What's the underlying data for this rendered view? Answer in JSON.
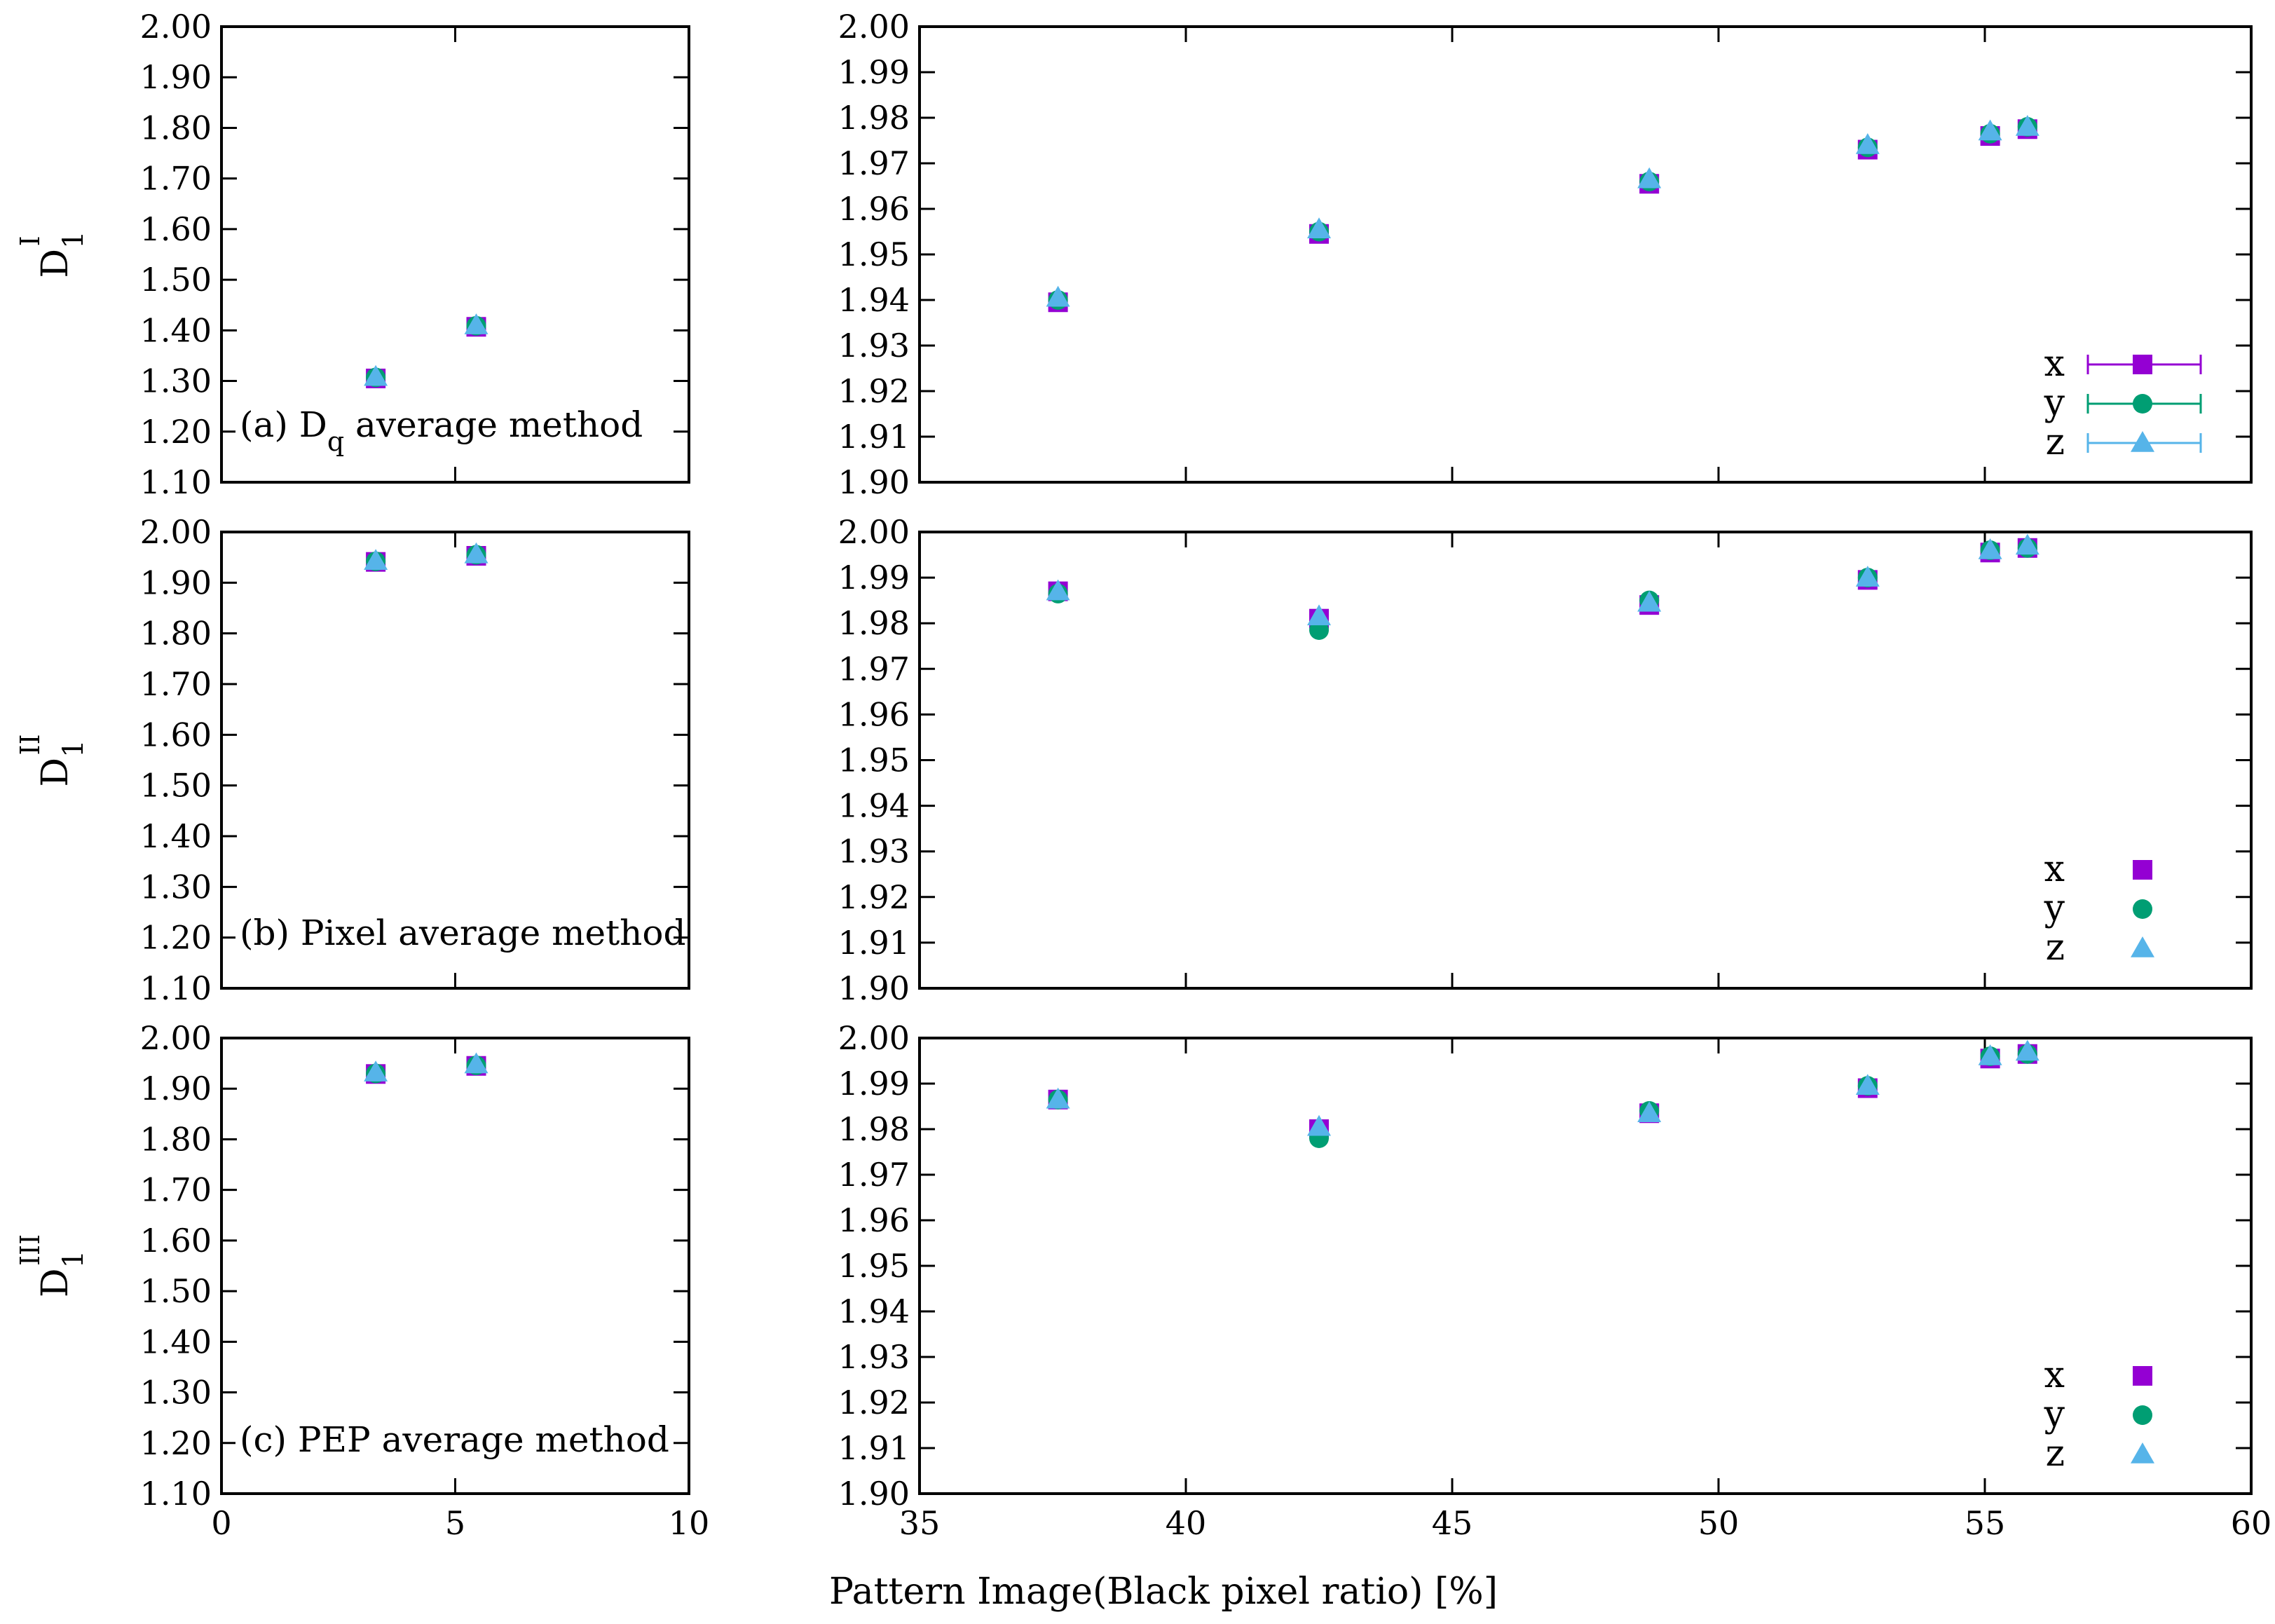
{
  "xlabel": "Pattern Image(Black pixel ratio) [%]",
  "colors": {
    "x": "#9400d3",
    "y": "#009e73",
    "z": "#56b4e9"
  },
  "row_labels": [
    {
      "base": "D",
      "sub": "1",
      "sup": "I"
    },
    {
      "base": "D",
      "sub": "1",
      "sup": "II"
    },
    {
      "base": "D",
      "sub": "1",
      "sup": "III"
    }
  ],
  "chart_data": [
    {
      "type": "scatter",
      "row": 0,
      "col": "left",
      "annotation": {
        "prefix": "(a) D",
        "sub": "q",
        "suffix": " average method"
      },
      "xlim": [
        0,
        10
      ],
      "ylim": [
        1.1,
        2.0
      ],
      "xticks": [],
      "xtick_labels": [],
      "yticks": [
        1.1,
        1.2,
        1.3,
        1.4,
        1.5,
        1.6,
        1.7,
        1.8,
        1.9,
        2.0
      ],
      "ytick_labels": [
        "1.10",
        "1.20",
        "1.30",
        "1.40",
        "1.50",
        "1.60",
        "1.70",
        "1.80",
        "1.90",
        "2.00"
      ],
      "series": [
        {
          "name": "x",
          "x": [
            3.3,
            5.45
          ],
          "y": [
            1.305,
            1.407
          ]
        },
        {
          "name": "y",
          "x": [
            3.3,
            5.45
          ],
          "y": [
            1.307,
            1.409
          ]
        },
        {
          "name": "z",
          "x": [
            3.3,
            5.45
          ],
          "y": [
            1.308,
            1.41
          ]
        }
      ]
    },
    {
      "type": "scatter",
      "row": 0,
      "col": "right",
      "xlim": [
        35,
        60
      ],
      "ylim": [
        1.9,
        2.0
      ],
      "xticks": [],
      "xtick_labels": [],
      "yticks": [
        1.9,
        1.91,
        1.92,
        1.93,
        1.94,
        1.95,
        1.96,
        1.97,
        1.98,
        1.99,
        2.0
      ],
      "ytick_labels": [
        "1.90",
        "1.91",
        "1.92",
        "1.93",
        "1.94",
        "1.95",
        "1.96",
        "1.97",
        "1.98",
        "1.99",
        "2.00"
      ],
      "legend": {
        "labels": [
          "x",
          "y",
          "z"
        ],
        "errorbars": true,
        "position": "bottom-right"
      },
      "series": [
        {
          "name": "x",
          "x": [
            37.6,
            42.5,
            48.7,
            52.8,
            55.1,
            55.8
          ],
          "y": [
            1.9395,
            1.9545,
            1.9655,
            1.973,
            1.976,
            1.9775
          ]
        },
        {
          "name": "y",
          "x": [
            37.6,
            42.5,
            48.7,
            52.8,
            55.1,
            55.8
          ],
          "y": [
            1.94,
            1.955,
            1.966,
            1.9735,
            1.9765,
            1.978
          ]
        },
        {
          "name": "z",
          "x": [
            37.6,
            42.5,
            48.7,
            52.8,
            55.1,
            55.8
          ],
          "y": [
            1.9405,
            1.9555,
            1.9665,
            1.974,
            1.977,
            1.978
          ]
        }
      ]
    },
    {
      "type": "scatter",
      "row": 1,
      "col": "left",
      "annotation": {
        "prefix": "(b) Pixel average method",
        "sub": "",
        "suffix": ""
      },
      "xlim": [
        0,
        10
      ],
      "ylim": [
        1.1,
        2.0
      ],
      "xticks": [],
      "xtick_labels": [],
      "yticks": [
        1.1,
        1.2,
        1.3,
        1.4,
        1.5,
        1.6,
        1.7,
        1.8,
        1.9,
        2.0
      ],
      "ytick_labels": [
        "1.10",
        "1.20",
        "1.30",
        "1.40",
        "1.50",
        "1.60",
        "1.70",
        "1.80",
        "1.90",
        "2.00"
      ],
      "series": [
        {
          "name": "x",
          "x": [
            3.3,
            5.45
          ],
          "y": [
            1.941,
            1.953
          ]
        },
        {
          "name": "y",
          "x": [
            3.3,
            5.45
          ],
          "y": [
            1.942,
            1.955
          ]
        },
        {
          "name": "z",
          "x": [
            3.3,
            5.45
          ],
          "y": [
            1.943,
            1.956
          ]
        }
      ]
    },
    {
      "type": "scatter",
      "row": 1,
      "col": "right",
      "xlim": [
        35,
        60
      ],
      "ylim": [
        1.9,
        2.0
      ],
      "xticks": [],
      "xtick_labels": [],
      "yticks": [
        1.9,
        1.91,
        1.92,
        1.93,
        1.94,
        1.95,
        1.96,
        1.97,
        1.98,
        1.99,
        2.0
      ],
      "ytick_labels": [
        "1.90",
        "1.91",
        "1.92",
        "1.93",
        "1.94",
        "1.95",
        "1.96",
        "1.97",
        "1.98",
        "1.99",
        "2.00"
      ],
      "legend": {
        "labels": [
          "x",
          "y",
          "z"
        ],
        "errorbars": false,
        "position": "bottom-right"
      },
      "series": [
        {
          "name": "x",
          "x": [
            37.6,
            42.5,
            48.7,
            52.8,
            55.1,
            55.8
          ],
          "y": [
            1.987,
            1.981,
            1.984,
            1.9895,
            1.9955,
            1.9965
          ]
        },
        {
          "name": "y",
          "x": [
            37.6,
            42.5,
            48.7,
            52.8,
            55.1,
            55.8
          ],
          "y": [
            1.9865,
            1.9785,
            1.985,
            1.99,
            1.996,
            1.9965
          ]
        },
        {
          "name": "z",
          "x": [
            37.6,
            42.5,
            48.7,
            52.8,
            55.1,
            55.8
          ],
          "y": [
            1.987,
            1.9815,
            1.9845,
            1.99,
            1.996,
            1.997
          ]
        }
      ]
    },
    {
      "type": "scatter",
      "row": 2,
      "col": "left",
      "annotation": {
        "prefix": "(c) PEP average method",
        "sub": "",
        "suffix": ""
      },
      "xlim": [
        0,
        10
      ],
      "ylim": [
        1.1,
        2.0
      ],
      "xticks": [
        0,
        5,
        10
      ],
      "xtick_labels": [
        "0",
        "5",
        "10"
      ],
      "yticks": [
        1.1,
        1.2,
        1.3,
        1.4,
        1.5,
        1.6,
        1.7,
        1.8,
        1.9,
        2.0
      ],
      "ytick_labels": [
        "1.10",
        "1.20",
        "1.30",
        "1.40",
        "1.50",
        "1.60",
        "1.70",
        "1.80",
        "1.90",
        "2.00"
      ],
      "series": [
        {
          "name": "x",
          "x": [
            3.3,
            5.45
          ],
          "y": [
            1.929,
            1.945
          ]
        },
        {
          "name": "y",
          "x": [
            3.3,
            5.45
          ],
          "y": [
            1.93,
            1.946
          ]
        },
        {
          "name": "z",
          "x": [
            3.3,
            5.45
          ],
          "y": [
            1.932,
            1.948
          ]
        }
      ]
    },
    {
      "type": "scatter",
      "row": 2,
      "col": "right",
      "xlim": [
        35,
        60
      ],
      "ylim": [
        1.9,
        2.0
      ],
      "xticks": [
        35,
        40,
        45,
        50,
        55,
        60
      ],
      "xtick_labels": [
        "35",
        "40",
        "45",
        "50",
        "55",
        "60"
      ],
      "yticks": [
        1.9,
        1.91,
        1.92,
        1.93,
        1.94,
        1.95,
        1.96,
        1.97,
        1.98,
        1.99,
        2.0
      ],
      "ytick_labels": [
        "1.90",
        "1.91",
        "1.92",
        "1.93",
        "1.94",
        "1.95",
        "1.96",
        "1.97",
        "1.98",
        "1.99",
        "2.00"
      ],
      "legend": {
        "labels": [
          "x",
          "y",
          "z"
        ],
        "errorbars": false,
        "position": "bottom-right"
      },
      "series": [
        {
          "name": "x",
          "x": [
            37.6,
            42.5,
            48.7,
            52.8,
            55.1,
            55.8
          ],
          "y": [
            1.9865,
            1.98,
            1.9835,
            1.989,
            1.9955,
            1.9965
          ]
        },
        {
          "name": "y",
          "x": [
            37.6,
            42.5,
            48.7,
            52.8,
            55.1,
            55.8
          ],
          "y": [
            1.9865,
            1.978,
            1.984,
            1.9895,
            1.996,
            1.9965
          ]
        },
        {
          "name": "z",
          "x": [
            37.6,
            42.5,
            48.7,
            52.8,
            55.1,
            55.8
          ],
          "y": [
            1.9865,
            1.9805,
            1.9835,
            1.9895,
            1.996,
            1.997
          ]
        }
      ]
    }
  ]
}
